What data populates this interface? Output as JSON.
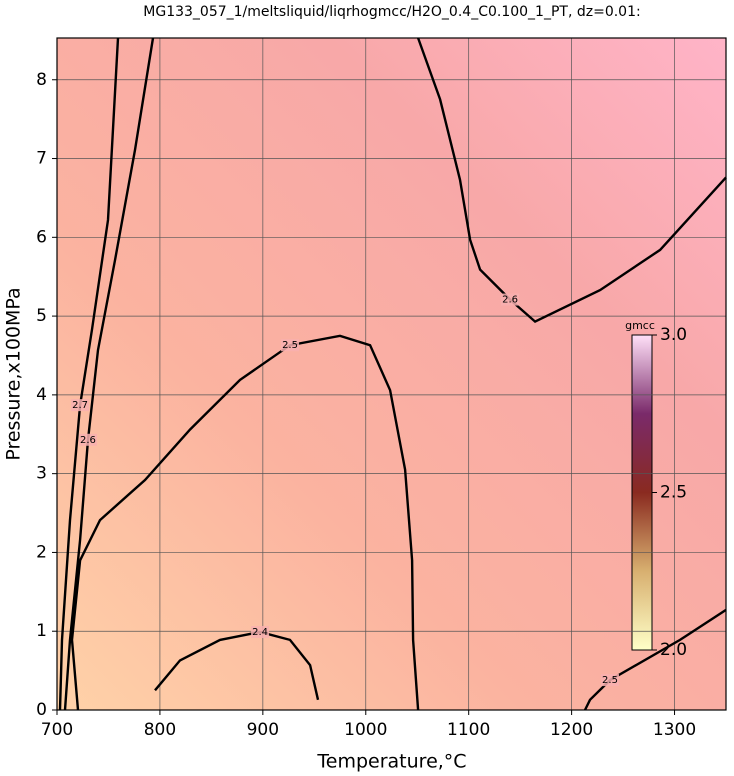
{
  "chart_data": {
    "type": "contour",
    "title": "MG133_057_1/meltsliquid/liqrhogmcc/H2O_0.4_C0.100_1_PT, dz=0.01:",
    "x_label": "Temperature,°C",
    "y_label": "Pressure,x100MPa",
    "xlim": [
      700,
      1350
    ],
    "ylim": [
      0,
      8.53
    ],
    "xticks": [
      700,
      800,
      900,
      1000,
      1100,
      1200,
      1300
    ],
    "yticks": [
      0,
      1,
      2,
      3,
      4,
      5,
      6,
      7,
      8
    ],
    "grid": true,
    "colorbar": {
      "label": "gmcc",
      "lim": [
        2.0,
        3.0
      ],
      "ticks": [
        {
          "value": 3.0,
          "label": "3.0"
        },
        {
          "value": 2.5,
          "label": "2.5"
        },
        {
          "value": 2.0,
          "label": "2.0"
        }
      ]
    },
    "contours": [
      {
        "level": 2.5,
        "x": [
          720.4,
          714.6,
          722.4,
          741.8,
          785.5,
          829.3,
          877.8,
          926.4,
          975.0,
          1004.2,
          1023.6,
          1038.2,
          1045.0,
          1046.0,
          1050.8
        ],
        "y": [
          0,
          0.89,
          1.9,
          2.41,
          2.92,
          3.56,
          4.19,
          4.63,
          4.75,
          4.63,
          4.06,
          3.05,
          1.9,
          0.89,
          0
        ]
      },
      {
        "level": 2.6,
        "x": [
          1050.8,
          1072.2,
          1091.6,
          1101.4,
          1111.1,
          1140.2,
          1164.5,
          1227.7,
          1286.0,
          1350
        ],
        "y": [
          8.53,
          7.75,
          6.73,
          5.97,
          5.59,
          5.21,
          4.93,
          5.33,
          5.84,
          6.76
        ]
      },
      {
        "level": 2.4,
        "x": [
          795.2,
          819.5,
          858.4,
          897.3,
          926.4,
          945.9,
          953.6
        ],
        "y": [
          0.25,
          0.63,
          0.89,
          0.99,
          0.89,
          0.57,
          0.13
        ]
      },
      {
        "level": 2.6,
        "x": [
          793.3,
          775.8,
          756.4,
          739.8,
          730.1,
          722.4,
          712.6,
          707.8
        ],
        "y": [
          8.53,
          7.11,
          5.71,
          4.57,
          3.43,
          2.16,
          0.89,
          0
        ]
      },
      {
        "level": 2.7,
        "x": [
          759.3,
          749.6,
          734.0,
          722.4,
          712.6,
          704.9,
          702.9
        ],
        "y": [
          8.53,
          6.22,
          4.83,
          3.87,
          2.41,
          0.89,
          0
        ]
      },
      {
        "level": 2.5,
        "x": [
          1350,
          1305.3,
          1237.3,
          1217.9,
          1213.0
        ],
        "y": [
          1.27,
          0.89,
          0.38,
          0.13,
          0
        ]
      }
    ]
  }
}
